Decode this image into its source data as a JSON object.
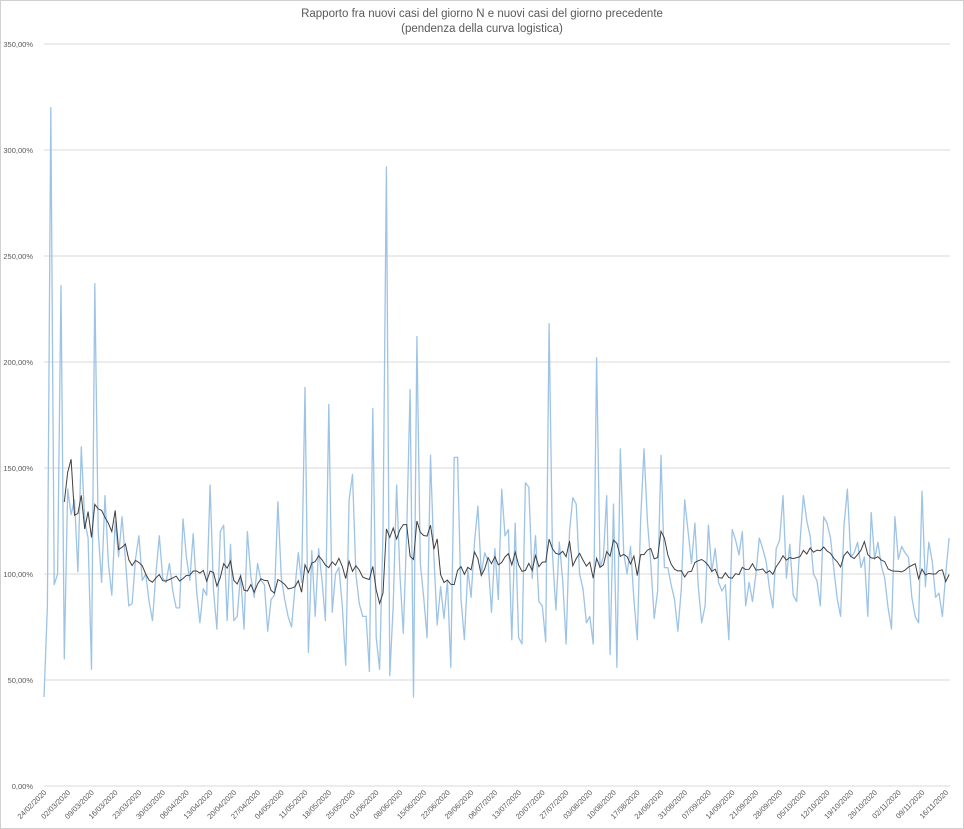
{
  "chart_data": {
    "type": "line",
    "title": "Rapporto fra nuovi casi del giorno N e nuovi casi del giorno precedente",
    "subtitle": "(pendenza della curva logistica)",
    "xlabel": "",
    "ylabel": "",
    "x_start": "24/02/2020",
    "x_tick_labels": [
      "24/02/2020",
      "02/03/2020",
      "09/03/2020",
      "16/03/2020",
      "23/03/2020",
      "30/03/2020",
      "06/04/2020",
      "13/04/2020",
      "20/04/2020",
      "27/04/2020",
      "04/05/2020",
      "11/05/2020",
      "18/05/2020",
      "25/05/2020",
      "01/06/2020",
      "08/06/2020",
      "15/06/2020",
      "22/06/2020",
      "29/06/2020",
      "06/07/2020",
      "13/07/2020",
      "20/07/2020",
      "27/07/2020",
      "03/08/2020",
      "10/08/2020",
      "17/08/2020",
      "24/08/2020",
      "31/08/2020",
      "07/09/2020",
      "14/09/2020",
      "21/09/2020",
      "28/09/2020",
      "05/10/2020",
      "12/10/2020",
      "19/10/2020",
      "26/10/2020",
      "02/11/2020",
      "09/11/2020",
      "16/11/2020"
    ],
    "y_tick_labels": [
      "0,00%",
      "50,00%",
      "100,00%",
      "150,00%",
      "200,00%",
      "250,00%",
      "300,00%",
      "350,00%"
    ],
    "ylim": [
      0,
      350
    ],
    "y_unit": "%",
    "grid": true,
    "legend": "none",
    "series": [
      {
        "color": "#9dc3e6",
        "values": [
          42,
          85,
          320,
          95,
          100,
          236,
          60,
          140,
          128,
          135,
          101,
          160,
          125,
          117,
          55,
          237,
          120,
          96,
          137,
          105,
          90,
          125,
          108,
          127,
          107,
          85,
          86,
          107,
          118,
          97,
          100,
          87,
          78,
          100,
          118,
          98,
          96,
          105,
          92,
          84,
          84,
          126,
          108,
          97,
          119,
          92,
          77,
          93,
          90,
          142,
          92,
          74,
          120,
          123,
          78,
          114,
          78,
          80,
          100,
          74,
          120,
          99,
          89,
          105,
          97,
          95,
          73,
          88,
          90,
          134,
          98,
          88,
          80,
          75,
          93,
          110,
          96,
          188,
          63,
          111,
          80,
          112,
          97,
          78,
          180,
          82,
          100,
          103,
          85,
          57,
          135,
          147,
          100,
          86,
          80,
          80,
          54,
          178,
          70,
          55,
          120,
          292,
          52,
          85,
          142,
          100,
          72,
          120,
          187,
          42,
          212,
          105,
          89,
          70,
          156,
          108,
          76,
          94,
          79,
          97,
          56,
          155,
          155,
          88,
          69,
          102,
          89,
          115,
          132,
          100,
          110,
          106,
          82,
          112,
          88,
          140,
          118,
          121,
          69,
          124,
          70,
          67,
          143,
          141,
          98,
          118,
          87,
          85,
          68,
          218,
          109,
          83,
          115,
          97,
          67,
          120,
          136,
          133,
          100,
          93,
          77,
          80,
          67,
          202,
          103,
          108,
          137,
          62,
          133,
          56,
          159,
          110,
          100,
          113,
          88,
          69,
          125,
          159,
          125,
          105,
          79,
          92,
          156,
          103,
          103,
          95,
          88,
          73,
          93,
          135,
          120,
          105,
          124,
          94,
          77,
          85,
          123,
          101,
          112,
          96,
          92,
          95,
          69,
          121,
          116,
          109,
          120,
          85,
          96,
          87,
          100,
          117,
          112,
          106,
          93,
          84,
          112,
          116,
          137,
          98,
          114,
          90,
          87,
          115,
          137,
          125,
          118,
          100,
          97,
          85,
          127,
          124,
          117,
          102,
          88,
          80,
          123,
          140,
          108,
          110,
          115,
          103,
          108,
          80,
          129,
          107,
          115,
          104,
          98,
          84,
          74,
          127,
          107,
          113,
          110,
          108,
          89,
          80,
          77,
          139,
          94,
          115,
          106,
          89,
          91,
          80,
          100,
          117
        ]
      },
      {
        "color": "#404040",
        "moving_average_window": 7
      }
    ]
  }
}
